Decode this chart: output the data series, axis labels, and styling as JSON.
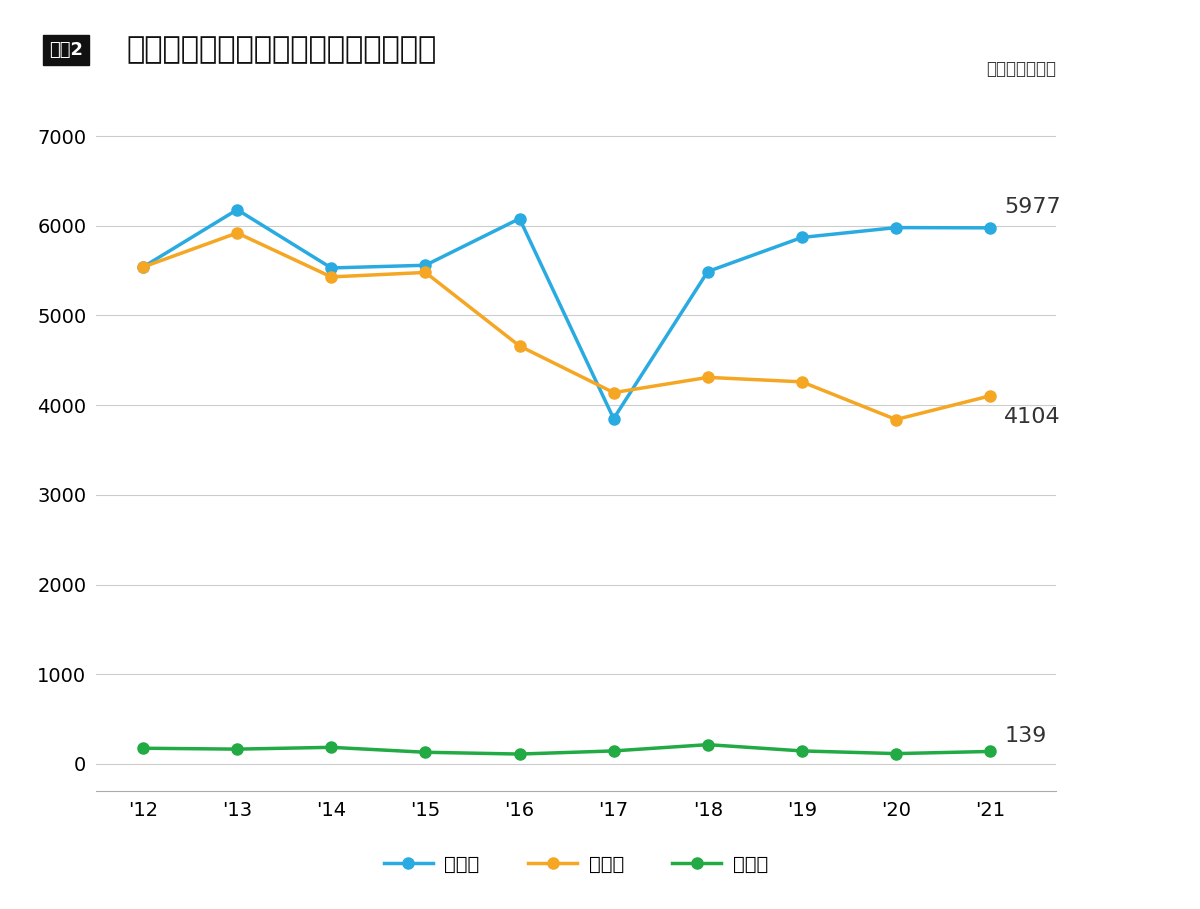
{
  "title": "かぼす・すだち・へべすの収穫量推移",
  "title_prefix": "図表2",
  "unit_label": "（単位：トン）",
  "years": [
    "'12",
    "'13",
    "'14",
    "'15",
    "'16",
    "'17",
    "'18",
    "'19",
    "'20",
    "'21"
  ],
  "kabosu": [
    5540,
    6180,
    5530,
    5560,
    6080,
    3850,
    5490,
    5870,
    5980,
    5977
  ],
  "sudachi": [
    5540,
    5920,
    5430,
    5480,
    4660,
    4140,
    4310,
    4260,
    3840,
    4104
  ],
  "hebesu": [
    175,
    165,
    185,
    130,
    110,
    145,
    215,
    145,
    115,
    139
  ],
  "kabosu_color": "#29ABE2",
  "sudachi_color": "#F5A623",
  "hebesu_color": "#22AA44",
  "annotation_kabosu": "5977",
  "annotation_sudachi": "4104",
  "annotation_hebesu": "139",
  "legend_kabosu": "かぼす",
  "legend_sudachi": "すだち",
  "legend_hebesu": "へべす",
  "ylim_min": -300,
  "ylim_max": 7200,
  "yticks": [
    0,
    1000,
    2000,
    3000,
    4000,
    5000,
    6000,
    7000
  ],
  "bg_color": "#FFFFFF",
  "grid_color": "#CCCCCC",
  "title_box_color": "#111111",
  "title_box_text_color": "#FFFFFF",
  "title_fontsize": 22,
  "axis_fontsize": 14,
  "annotation_fontsize": 16,
  "legend_fontsize": 14,
  "line_width": 2.5,
  "marker_size": 8
}
